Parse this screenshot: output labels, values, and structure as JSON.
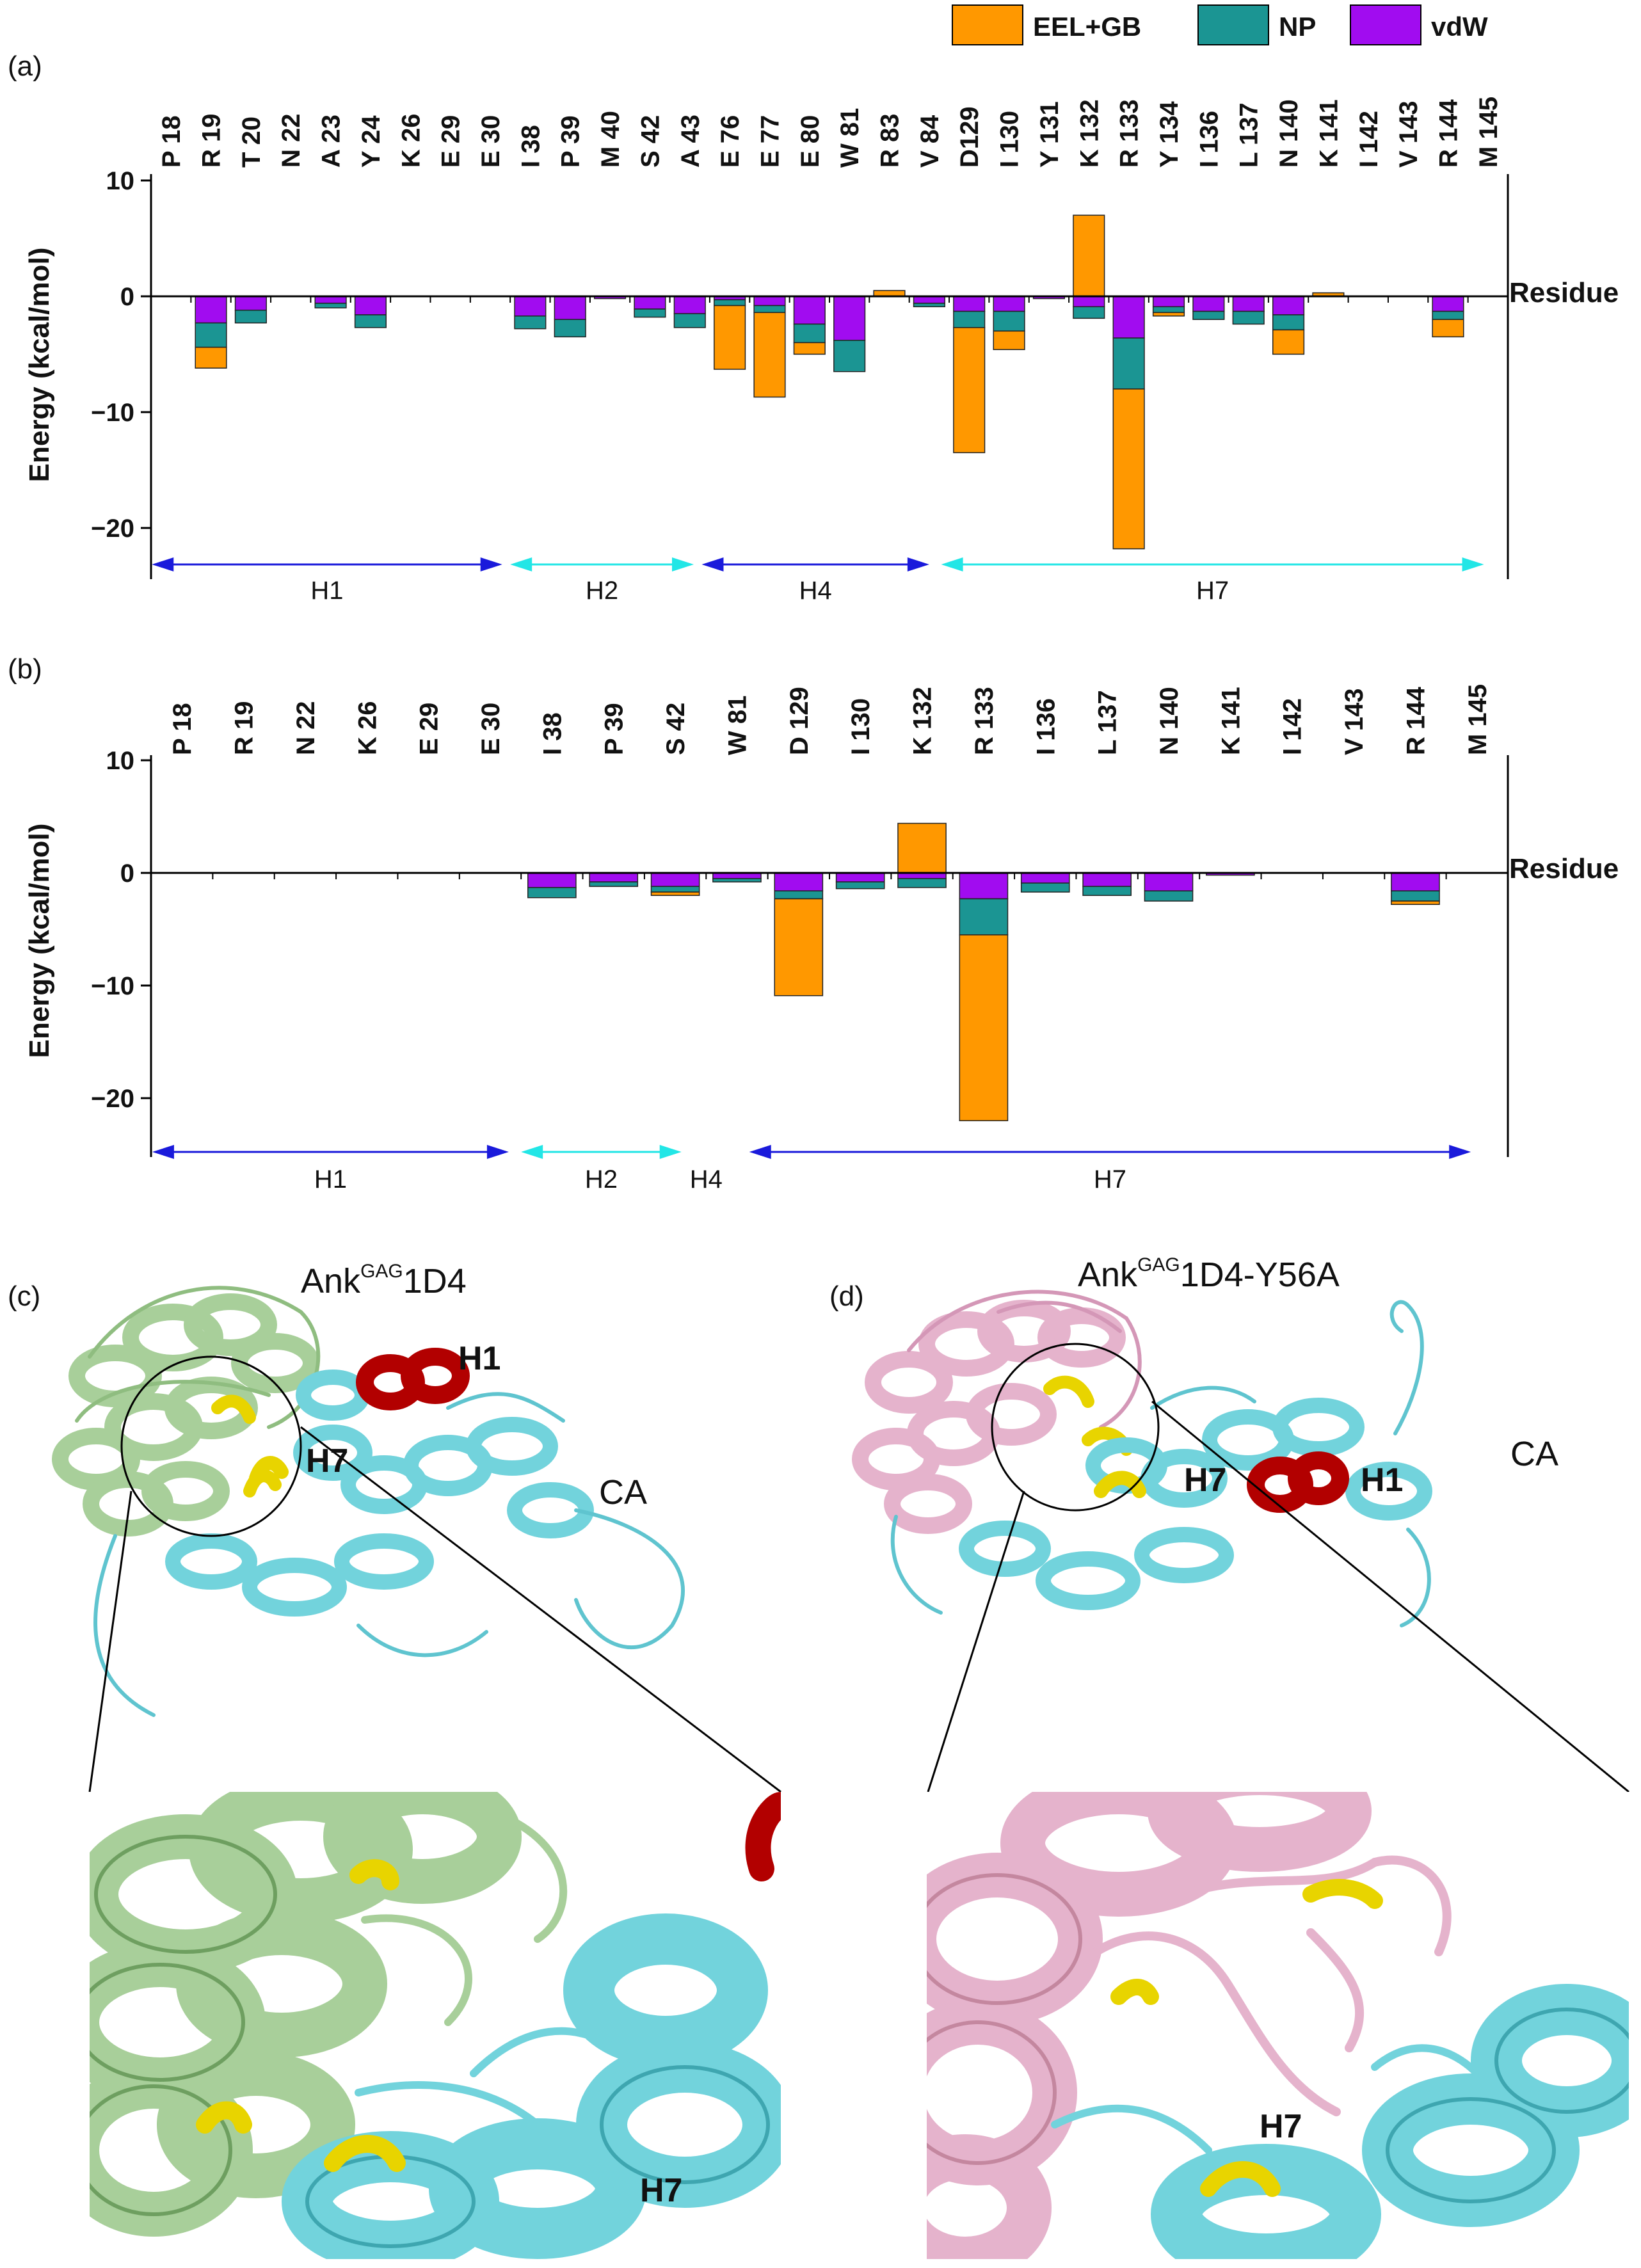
{
  "legend": [
    {
      "label": "EEL+GB",
      "color": "#ff9800"
    },
    {
      "label": "NP",
      "color": "#1b9593"
    },
    {
      "label": "vdW",
      "color": "#a10cf0"
    }
  ],
  "chart_data": [
    {
      "panel": "(a)",
      "type": "bar",
      "stacked": true,
      "ylabel": "Energy (kcal/mol)",
      "xlabel": "Residue",
      "ylim": [
        -25,
        10
      ],
      "yticks": [
        10,
        0,
        -10,
        -20
      ],
      "categories": [
        "P 18",
        "R 19",
        "T 20",
        "N 22",
        "A 23",
        "Y 24",
        "K 26",
        "E 29",
        "E 30",
        "I 38",
        "P 39",
        "M 40",
        "S 42",
        "A 43",
        "E 76",
        "E 77",
        "E 80",
        "W 81",
        "R 83",
        "V 84",
        "D129",
        "I 130",
        "Y 131",
        "K 132",
        "R 133",
        "Y 134",
        "I 136",
        "L 137",
        "N 140",
        "K 141",
        "I 142",
        "V 143",
        "R 144",
        "M 145"
      ],
      "series": [
        {
          "name": "vdW",
          "values": [
            0,
            -2.3,
            -1.2,
            0,
            -0.6,
            -1.6,
            0,
            0,
            0,
            -1.7,
            -2.0,
            -0.2,
            -1.1,
            -1.5,
            -0.3,
            -0.8,
            -2.4,
            -3.8,
            0,
            -0.6,
            -1.3,
            -1.3,
            -0.2,
            -0.9,
            -3.6,
            -0.9,
            -1.3,
            -1.3,
            -1.6,
            0,
            0,
            0,
            -1.3,
            0
          ]
        },
        {
          "name": "NP",
          "values": [
            0,
            -2.1,
            -1.1,
            0,
            -0.4,
            -1.1,
            0,
            0,
            0,
            -1.1,
            -1.5,
            0,
            -0.7,
            -1.2,
            -0.5,
            -0.6,
            -1.6,
            -2.7,
            0,
            -0.3,
            -1.4,
            -1.7,
            0,
            -1.0,
            -4.4,
            -0.5,
            -0.7,
            -1.1,
            -1.3,
            0,
            0,
            0,
            -0.7,
            0
          ]
        },
        {
          "name": "EEL+GB",
          "values": [
            0,
            -1.8,
            0,
            0,
            0,
            0,
            0,
            0,
            0,
            0,
            0,
            0,
            0,
            0,
            -5.5,
            -7.3,
            -1.0,
            0,
            0.5,
            0,
            -10.8,
            -1.6,
            0,
            7.0,
            -13.8,
            -0.3,
            0,
            0,
            -2.1,
            0.3,
            0,
            0,
            -1.5,
            0
          ]
        }
      ],
      "helices": [
        {
          "label": "H1",
          "color": "#1a1adb"
        },
        {
          "label": "H2",
          "color": "#22e6e6"
        },
        {
          "label": "H4",
          "color": "#1a1adb"
        },
        {
          "label": "H7",
          "color": "#22e6e6"
        }
      ]
    },
    {
      "panel": "(b)",
      "type": "bar",
      "stacked": true,
      "ylabel": "Energy (kcal/mol)",
      "xlabel": "Residue",
      "ylim": [
        -25,
        10
      ],
      "yticks": [
        10,
        0,
        -10,
        -20
      ],
      "categories": [
        "P 18",
        "R 19",
        "N 22",
        "K 26",
        "E 29",
        "E 30",
        "I 38",
        "P 39",
        "S 42",
        "W 81",
        "D 129",
        "I 130",
        "K 132",
        "R 133",
        "I 136",
        "L 137",
        "N 140",
        "K 141",
        "I 142",
        "V 143",
        "R 144",
        "M 145"
      ],
      "series": [
        {
          "name": "vdW",
          "values": [
            0,
            0,
            0,
            0,
            0,
            0,
            -1.3,
            -0.8,
            -1.2,
            -0.5,
            -1.6,
            -0.8,
            -0.5,
            -2.3,
            -0.9,
            -1.2,
            -1.6,
            -0.2,
            0,
            0,
            -1.6,
            0
          ]
        },
        {
          "name": "NP",
          "values": [
            0,
            0,
            0,
            0,
            0,
            0,
            -0.9,
            -0.4,
            -0.5,
            -0.3,
            -0.7,
            -0.6,
            -0.8,
            -3.2,
            -0.8,
            -0.8,
            -0.9,
            0,
            0,
            0,
            -0.9,
            0
          ]
        },
        {
          "name": "EEL+GB",
          "values": [
            0,
            0,
            0,
            0,
            0,
            0,
            0,
            0,
            -0.3,
            0,
            -8.6,
            0,
            4.4,
            -16.5,
            0,
            0,
            0,
            0,
            0,
            0,
            -0.3,
            0
          ]
        }
      ],
      "helices": [
        {
          "label": "H1",
          "color": "#1a1adb"
        },
        {
          "label": "H2",
          "color": "#22e6e6"
        },
        {
          "label": "H4",
          "color": "#1a1adb"
        },
        {
          "label": "H7",
          "color": "#1a1adb"
        }
      ]
    }
  ],
  "structures": {
    "c": {
      "panel": "(c)",
      "title_main": "Ank",
      "title_sup": "GAG",
      "title_tail": "1D4",
      "labels": {
        "h1": "H1",
        "h7": "H7",
        "ca": "CA",
        "zoom_h7": "H7"
      }
    },
    "d": {
      "panel": "(d)",
      "title_main": "Ank",
      "title_sup": "GAG",
      "title_tail": "1D4-Y56A",
      "labels": {
        "h1": "H1",
        "h7": "H7",
        "ca": "CA",
        "zoom_h7": "H7"
      }
    }
  },
  "colors": {
    "ank_c": "#a8cf9a",
    "ank_d": "#e5b3cc",
    "ca": "#72d3dc",
    "helix1": "#b20000",
    "contact": "#e8d400"
  }
}
